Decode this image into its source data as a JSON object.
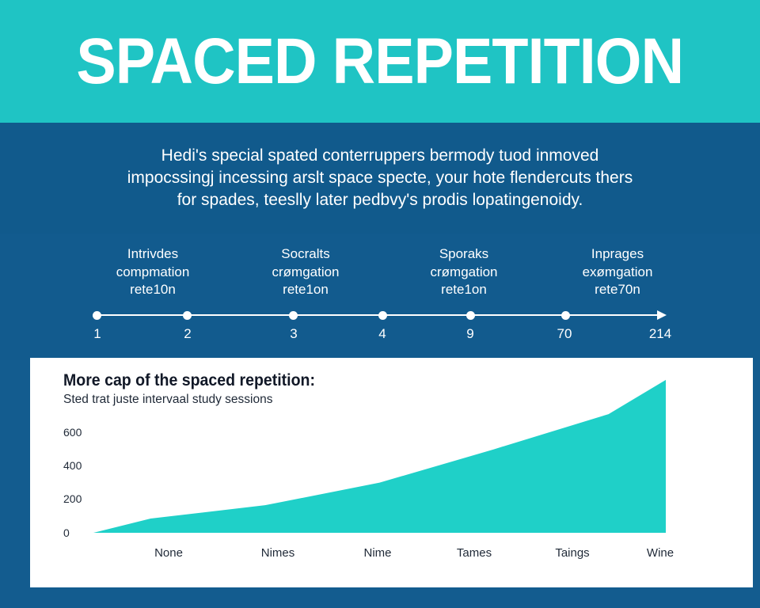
{
  "header": {
    "title": "SPACED REPETITION",
    "bg_color": "#1fc4c4"
  },
  "intro": {
    "lines": [
      "Hedi's special spated conterruppers bermody tuod inmoved",
      "impocssingj incessing arslt space specte, your hote flendercuts thers",
      "for spades, teeslly later pedbvy's prodis lopatingenoidy."
    ]
  },
  "timeline": {
    "milestones": [
      {
        "lines": [
          "Intrivdes",
          "compmation",
          "rete10n"
        ]
      },
      {
        "lines": [
          "Socralts",
          "crømgation",
          "rete1on"
        ]
      },
      {
        "lines": [
          "Sporaks",
          "crømgation",
          "rete1on"
        ]
      },
      {
        "lines": [
          "Inprages",
          "exømgation",
          "rete70n"
        ]
      }
    ],
    "ticks": [
      "1",
      "2",
      "3",
      "4",
      "9",
      "70",
      "214"
    ]
  },
  "chart_data": {
    "type": "area",
    "title": "More cap of the spaced repetition:",
    "subtitle": "Sted trat juste intervaal study sessions",
    "categories": [
      "None",
      "Nimes",
      "Nime",
      "Tames",
      "Taings",
      "Wine"
    ],
    "y_ticks": [
      "600",
      "400",
      "200",
      "0"
    ],
    "ylim": [
      0,
      900
    ],
    "series": [
      {
        "values": [
          0,
          85,
          165,
          300,
          500,
          710,
          915
        ],
        "x": [
          0,
          0.5,
          1.5,
          2.5,
          3.5,
          4.5,
          5
        ]
      }
    ],
    "fill_color": "#1fd0c8",
    "grid": false,
    "legend": "none"
  },
  "colors": {
    "background": "#135c8f",
    "accent": "#1fc4c4",
    "card": "#ffffff"
  }
}
